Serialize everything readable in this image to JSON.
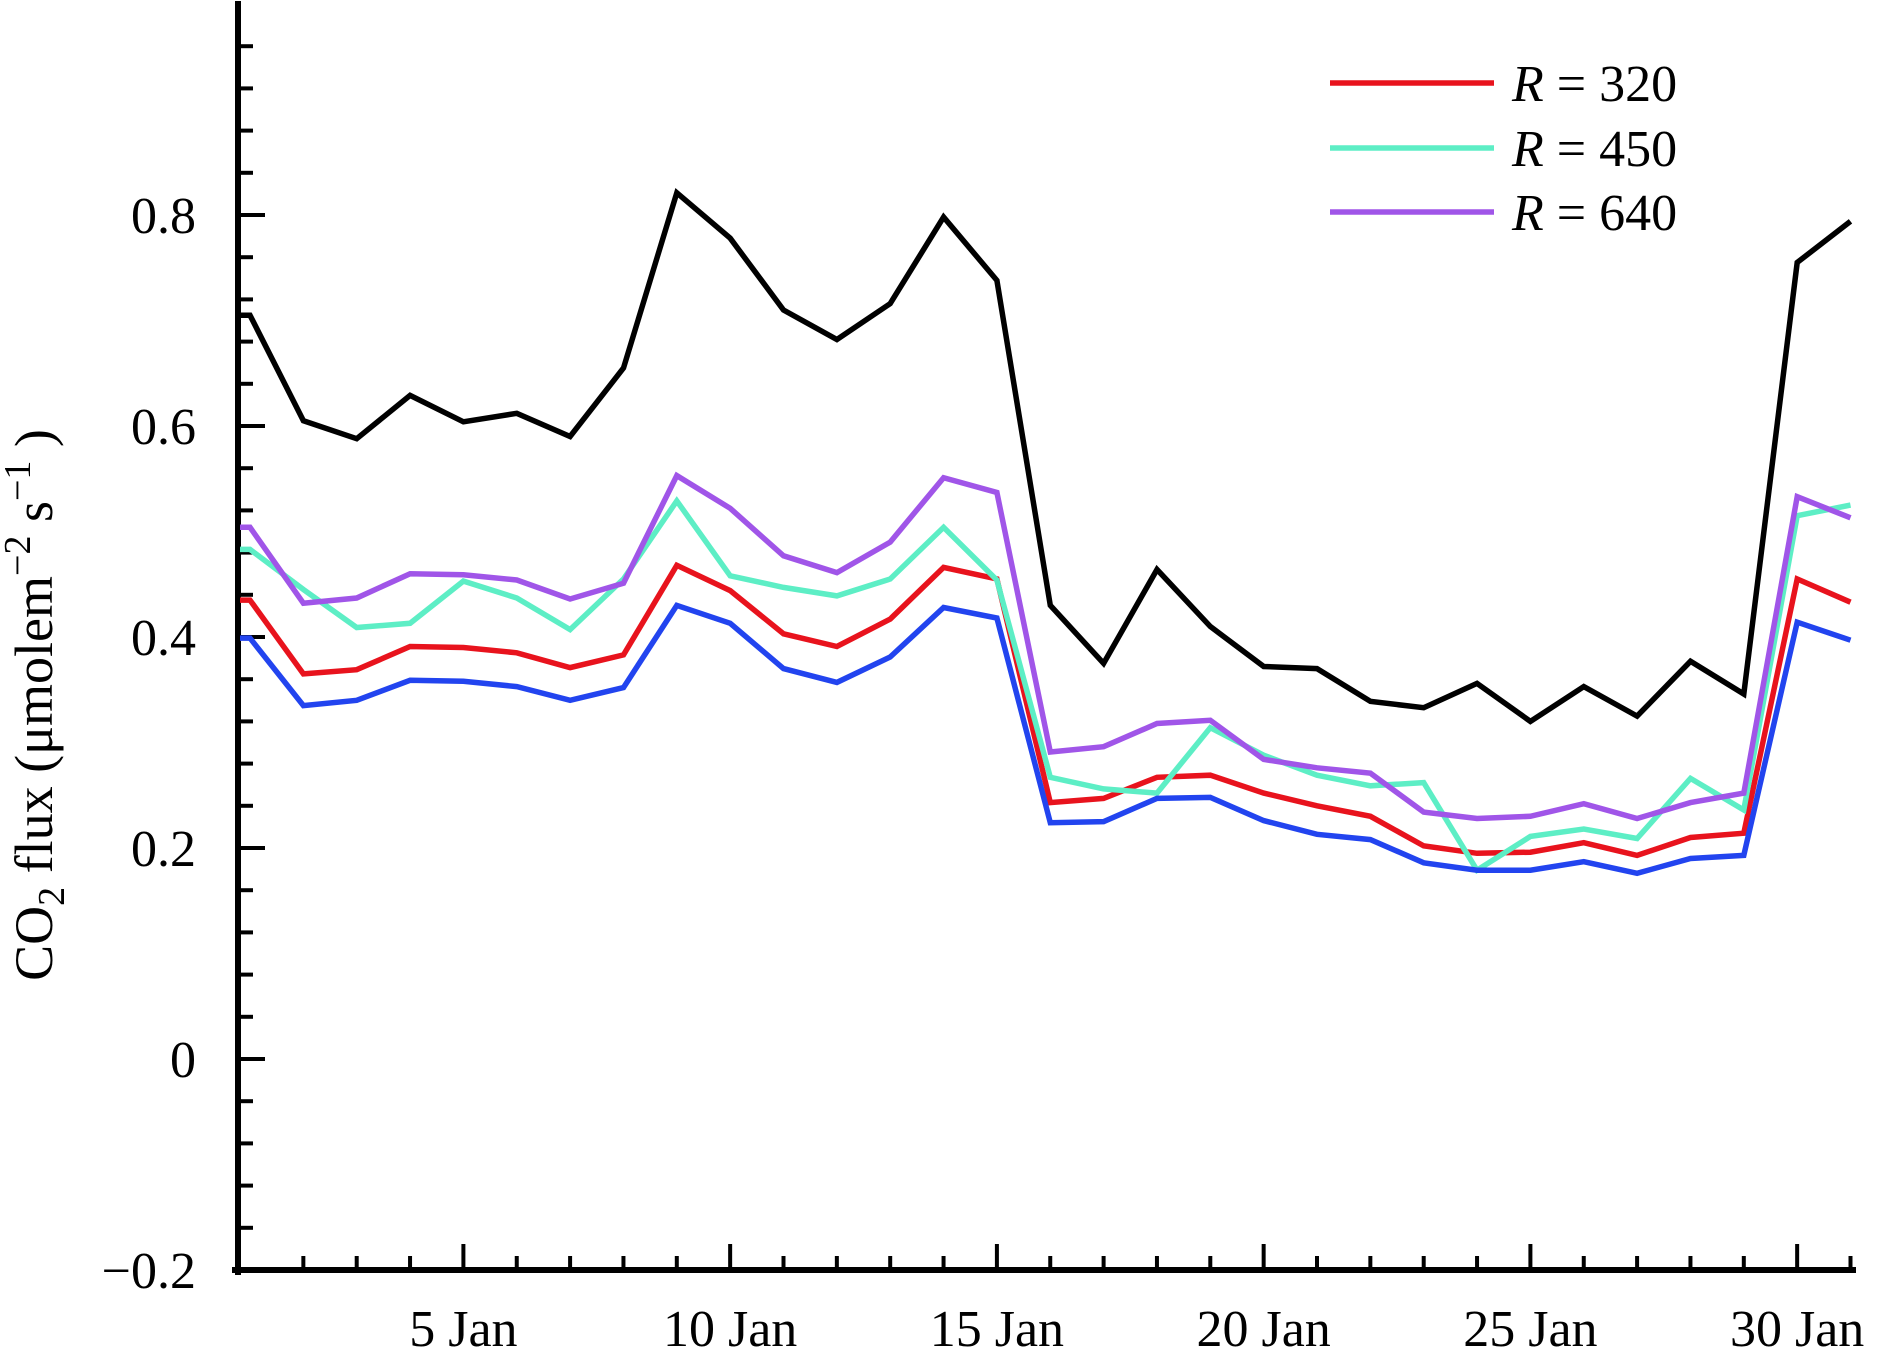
{
  "chart_data": {
    "type": "line",
    "title": "",
    "xlabel": "",
    "ylabel_parts": [
      {
        "t": "CO"
      },
      {
        "t": "2",
        "sub": true
      },
      {
        "t": " flux (μmolem"
      },
      {
        "t": "−2",
        "sup": true
      },
      {
        "t": " s"
      },
      {
        "t": "−1",
        "sup": true
      },
      {
        "t": " )"
      }
    ],
    "x_days": [
      1,
      2,
      3,
      4,
      5,
      6,
      7,
      8,
      9,
      10,
      11,
      12,
      13,
      14,
      15,
      16,
      17,
      18,
      19,
      20,
      21,
      22,
      23,
      24,
      25,
      26,
      27,
      28,
      29,
      30,
      31
    ],
    "x_major_tick_days": [
      5,
      10,
      15,
      20,
      25,
      30
    ],
    "x_tick_labels": [
      "5 Jan",
      "10 Jan",
      "15 Jan",
      "20 Jan",
      "25 Jan",
      "30 Jan"
    ],
    "xlim": [
      1,
      31
    ],
    "ylim": [
      -0.2,
      1.0
    ],
    "y_major_ticks": [
      -0.2,
      0,
      0.2,
      0.4,
      0.6,
      0.8
    ],
    "y_tick_labels": [
      "−0.2",
      "0",
      "0.2",
      "0.4",
      "0.6",
      "0.8"
    ],
    "y_minor_step": 0.04,
    "grid": false,
    "legend_position": "top-right",
    "series": [
      {
        "name": "unlabeled-black",
        "legend_label": null,
        "color": "#000000",
        "values": [
          0.705,
          0.605,
          0.588,
          0.629,
          0.604,
          0.612,
          0.59,
          0.655,
          0.821,
          0.778,
          0.71,
          0.682,
          0.716,
          0.798,
          0.738,
          0.43,
          0.375,
          0.464,
          0.41,
          0.372,
          0.37,
          0.339,
          0.333,
          0.356,
          0.32,
          0.353,
          0.325,
          0.377,
          0.346,
          0.755,
          0.794
        ]
      },
      {
        "name": "R-320",
        "legend_label": "R = 320",
        "color": "#e8131d",
        "values": [
          0.435,
          0.365,
          0.369,
          0.391,
          0.39,
          0.385,
          0.371,
          0.383,
          0.468,
          0.444,
          0.403,
          0.391,
          0.417,
          0.466,
          0.455,
          0.243,
          0.247,
          0.267,
          0.269,
          0.252,
          0.24,
          0.23,
          0.202,
          0.195,
          0.196,
          0.205,
          0.193,
          0.21,
          0.214,
          0.455,
          0.433
        ]
      },
      {
        "name": "R-450",
        "legend_label": "R = 450",
        "color": "#5deec5",
        "values": [
          0.483,
          0.445,
          0.409,
          0.413,
          0.453,
          0.437,
          0.407,
          0.455,
          0.529,
          0.458,
          0.447,
          0.439,
          0.455,
          0.504,
          0.454,
          0.267,
          0.256,
          0.252,
          0.314,
          0.288,
          0.269,
          0.259,
          0.262,
          0.179,
          0.211,
          0.218,
          0.209,
          0.266,
          0.236,
          0.515,
          0.525
        ]
      },
      {
        "name": "R-640",
        "legend_label": "R = 640",
        "color": "#a055e8",
        "values": [
          0.504,
          0.432,
          0.437,
          0.46,
          0.459,
          0.454,
          0.436,
          0.451,
          0.553,
          0.522,
          0.477,
          0.461,
          0.49,
          0.551,
          0.537,
          0.291,
          0.296,
          0.318,
          0.321,
          0.284,
          0.276,
          0.271,
          0.234,
          0.228,
          0.23,
          0.242,
          0.228,
          0.243,
          0.252,
          0.533,
          0.513
        ]
      },
      {
        "name": "unlabeled-blue",
        "legend_label": null,
        "color": "#2244ef",
        "values": [
          0.399,
          0.335,
          0.34,
          0.359,
          0.358,
          0.353,
          0.34,
          0.352,
          0.43,
          0.413,
          0.37,
          0.357,
          0.381,
          0.428,
          0.418,
          0.224,
          0.225,
          0.247,
          0.248,
          0.226,
          0.213,
          0.208,
          0.186,
          0.179,
          0.179,
          0.187,
          0.176,
          0.19,
          0.193,
          0.414,
          0.397
        ]
      }
    ]
  }
}
